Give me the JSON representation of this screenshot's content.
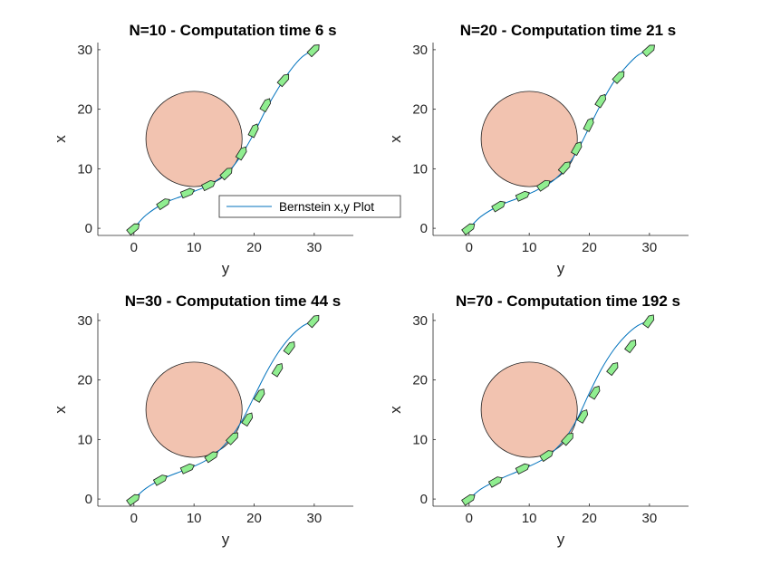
{
  "chart_data": [
    {
      "type": "line",
      "title": "N=10 - Computation time 6 s",
      "xlabel": "y",
      "ylabel": "x",
      "xlim": [
        -6,
        36.5
      ],
      "ylim": [
        -1.2,
        31.2
      ],
      "xticks": [
        "0",
        "10",
        "20",
        "30"
      ],
      "yticks": [
        "0",
        "10",
        "20",
        "30"
      ],
      "grid": false,
      "legend": {
        "entries": [
          "Bernstein x,y Plot"
        ],
        "placement": "bottom-right"
      },
      "obstacle": {
        "center": [
          10,
          15
        ],
        "radius": 8,
        "color": "#f2c3b0"
      },
      "series": [
        {
          "name": "Bernstein x,y Plot",
          "color": "#0072bd",
          "x": [
            0,
            2,
            5,
            8,
            10,
            12,
            14,
            16,
            18,
            20,
            22,
            24,
            26,
            28,
            30
          ],
          "y": [
            0,
            2.2,
            4.2,
            5.4,
            6.2,
            7.0,
            8.2,
            9.8,
            12.5,
            16.0,
            20.0,
            23.5,
            26.5,
            28.8,
            30
          ]
        }
      ],
      "markers": [
        [
          0,
          0
        ],
        [
          5,
          4.2
        ],
        [
          9,
          6.0
        ],
        [
          12.5,
          7.3
        ],
        [
          15.5,
          9.3
        ],
        [
          18,
          12.7
        ],
        [
          20,
          16.5
        ],
        [
          22,
          20.8
        ],
        [
          25,
          25.0
        ],
        [
          30,
          30
        ]
      ],
      "marker_color": "#90ee90"
    },
    {
      "type": "line",
      "title": "N=20 - Computation time 21 s",
      "xlabel": "y",
      "ylabel": "x",
      "xlim": [
        -6,
        36.5
      ],
      "ylim": [
        -1.2,
        31.2
      ],
      "xticks": [
        "0",
        "10",
        "20",
        "30"
      ],
      "yticks": [
        "0",
        "10",
        "20",
        "30"
      ],
      "grid": false,
      "obstacle": {
        "center": [
          10,
          15
        ],
        "radius": 8,
        "color": "#f2c3b0"
      },
      "series": [
        {
          "color": "#0072bd",
          "x": [
            0,
            2,
            5,
            8,
            10,
            12,
            14,
            16,
            18,
            20,
            22,
            24,
            26,
            28,
            30
          ],
          "y": [
            0,
            2.0,
            3.8,
            5.0,
            5.8,
            6.8,
            8.0,
            10.0,
            13.0,
            17.0,
            21.0,
            24.5,
            27.0,
            29.0,
            30
          ]
        }
      ],
      "markers": [
        [
          0,
          0
        ],
        [
          5,
          3.8
        ],
        [
          9,
          5.5
        ],
        [
          12.5,
          7.3
        ],
        [
          16,
          10.3
        ],
        [
          18,
          13.5
        ],
        [
          20,
          17.5
        ],
        [
          22,
          21.5
        ],
        [
          25,
          25.5
        ],
        [
          30,
          30
        ]
      ],
      "marker_color": "#90ee90"
    },
    {
      "type": "line",
      "title": "N=30 - Computation time 44 s",
      "xlabel": "y",
      "ylabel": "x",
      "xlim": [
        -6,
        36.5
      ],
      "ylim": [
        -1.2,
        31.2
      ],
      "xticks": [
        "0",
        "10",
        "20",
        "30"
      ],
      "yticks": [
        "0",
        "10",
        "20",
        "30"
      ],
      "grid": false,
      "obstacle": {
        "center": [
          10,
          15
        ],
        "radius": 8,
        "color": "#f2c3b0"
      },
      "series": [
        {
          "color": "#0072bd",
          "x": [
            0,
            2,
            5,
            8,
            10,
            12,
            14,
            16,
            18,
            20,
            22,
            24,
            26,
            28,
            30
          ],
          "y": [
            0,
            1.8,
            3.5,
            4.7,
            5.5,
            6.5,
            8.0,
            10.2,
            13.2,
            17.2,
            21.2,
            24.6,
            27.2,
            29.0,
            30
          ]
        }
      ],
      "markers": [
        [
          0,
          0
        ],
        [
          4.5,
          3.3
        ],
        [
          9,
          5.2
        ],
        [
          13,
          7.2
        ],
        [
          16.5,
          10.3
        ],
        [
          19,
          13.5
        ],
        [
          21,
          17.5
        ],
        [
          24,
          21.8
        ],
        [
          26,
          25.5
        ],
        [
          30,
          30
        ]
      ],
      "marker_color": "#90ee90"
    },
    {
      "type": "line",
      "title": "N=70 - Computation time 192 s",
      "xlabel": "y",
      "ylabel": "x",
      "xlim": [
        -6,
        36.5
      ],
      "ylim": [
        -1.2,
        31.2
      ],
      "xticks": [
        "0",
        "10",
        "20",
        "30"
      ],
      "yticks": [
        "0",
        "10",
        "20",
        "30"
      ],
      "grid": false,
      "obstacle": {
        "center": [
          10,
          15
        ],
        "radius": 8,
        "color": "#f2c3b0"
      },
      "series": [
        {
          "color": "#0072bd",
          "x": [
            0,
            2,
            5,
            8,
            10,
            12,
            14,
            16,
            18,
            20,
            22,
            24,
            26,
            28,
            30
          ],
          "y": [
            0,
            1.7,
            3.3,
            4.6,
            5.5,
            6.5,
            8.0,
            10.2,
            13.5,
            17.8,
            21.8,
            25.0,
            27.4,
            29.1,
            30
          ]
        }
      ],
      "markers": [
        [
          0,
          0
        ],
        [
          4.5,
          3.0
        ],
        [
          9,
          5.2
        ],
        [
          13,
          7.4
        ],
        [
          16.5,
          10.2
        ],
        [
          19,
          14.0
        ],
        [
          21,
          18.0
        ],
        [
          24,
          22.0
        ],
        [
          27,
          25.8
        ],
        [
          30,
          30
        ]
      ],
      "marker_color": "#90ee90"
    }
  ]
}
